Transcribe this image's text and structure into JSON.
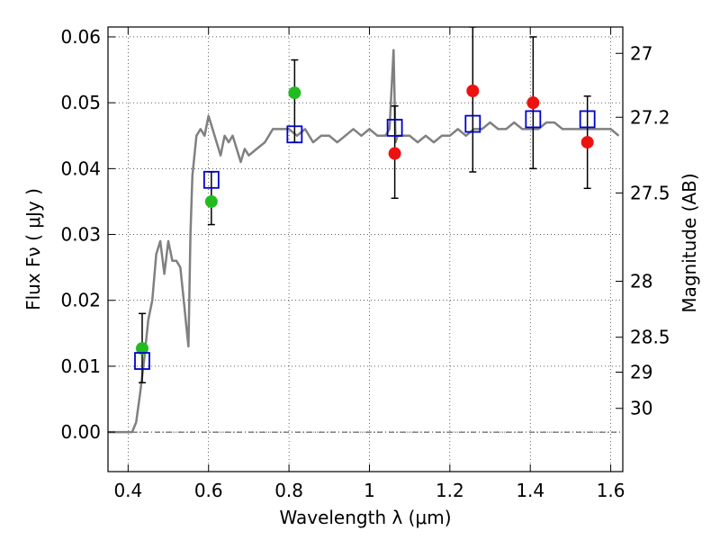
{
  "chart_data": {
    "type": "scatter",
    "title": "",
    "xlabel": "Wavelength  λ (μm)",
    "ylabel": "Flux  Fν  ( μJy )",
    "y2label": "Magnitude (AB)",
    "xlim": [
      0.35,
      1.63
    ],
    "ylim": [
      -0.006,
      0.0615
    ],
    "grid": true,
    "grid_style": "dotted",
    "x_ticks": [
      0.4,
      0.6,
      0.8,
      1.0,
      1.2,
      1.4,
      1.6
    ],
    "x_tick_labels": [
      "0.4",
      "0.6",
      "0.8",
      "1",
      "1.2",
      "1.4",
      "1.6"
    ],
    "y_ticks": [
      0.0,
      0.01,
      0.02,
      0.03,
      0.04,
      0.05,
      0.06
    ],
    "y_tick_labels": [
      "0.00",
      "0.01",
      "0.02",
      "0.03",
      "0.04",
      "0.05",
      "0.06"
    ],
    "y2_ticks": [
      {
        "label": "27",
        "flux": 0.0575
      },
      {
        "label": "27.2",
        "flux": 0.0478
      },
      {
        "label": "27.5",
        "flux": 0.0363
      },
      {
        "label": "28",
        "flux": 0.0229
      },
      {
        "label": "28.5",
        "flux": 0.0144
      },
      {
        "label": "29",
        "flux": 0.0091
      },
      {
        "label": "30",
        "flux": 0.0036
      }
    ],
    "colors": {
      "model": "#808080",
      "green_points": "#22bb22",
      "red_points": "#ee1111",
      "model_squares": "#0000cc",
      "error_bars": "#000000",
      "axes": "#000000"
    },
    "series": [
      {
        "kind": "line",
        "color_key": "model",
        "x": [
          0.35,
          0.41,
          0.42,
          0.43,
          0.44,
          0.45,
          0.46,
          0.47,
          0.48,
          0.49,
          0.5,
          0.51,
          0.52,
          0.53,
          0.54,
          0.545,
          0.55,
          0.555,
          0.56,
          0.57,
          0.58,
          0.59,
          0.6,
          0.61,
          0.62,
          0.63,
          0.64,
          0.65,
          0.66,
          0.67,
          0.68,
          0.69,
          0.7,
          0.72,
          0.74,
          0.76,
          0.78,
          0.8,
          0.82,
          0.84,
          0.86,
          0.88,
          0.9,
          0.92,
          0.94,
          0.96,
          0.98,
          1.0,
          1.02,
          1.04,
          1.05,
          1.06,
          1.065,
          1.07,
          1.08,
          1.1,
          1.12,
          1.14,
          1.16,
          1.18,
          1.2,
          1.22,
          1.24,
          1.26,
          1.28,
          1.3,
          1.32,
          1.34,
          1.36,
          1.38,
          1.4,
          1.42,
          1.44,
          1.46,
          1.48,
          1.5,
          1.52,
          1.54,
          1.56,
          1.58,
          1.6,
          1.62
        ],
        "y": [
          0.0,
          0.0,
          0.0015,
          0.006,
          0.011,
          0.017,
          0.02,
          0.027,
          0.029,
          0.024,
          0.029,
          0.026,
          0.026,
          0.025,
          0.019,
          0.016,
          0.013,
          0.03,
          0.039,
          0.045,
          0.046,
          0.045,
          0.048,
          0.046,
          0.044,
          0.042,
          0.045,
          0.044,
          0.045,
          0.043,
          0.041,
          0.043,
          0.042,
          0.043,
          0.044,
          0.046,
          0.046,
          0.046,
          0.045,
          0.046,
          0.044,
          0.045,
          0.045,
          0.044,
          0.045,
          0.046,
          0.045,
          0.046,
          0.045,
          0.045,
          0.046,
          0.058,
          0.044,
          0.045,
          0.045,
          0.045,
          0.044,
          0.045,
          0.044,
          0.045,
          0.045,
          0.046,
          0.045,
          0.046,
          0.046,
          0.047,
          0.046,
          0.046,
          0.047,
          0.046,
          0.046,
          0.046,
          0.047,
          0.047,
          0.046,
          0.046,
          0.046,
          0.046,
          0.046,
          0.046,
          0.046,
          0.045
        ]
      },
      {
        "kind": "errorbar",
        "x": [
          0.435,
          0.607,
          0.814,
          1.063,
          1.257,
          1.407,
          1.542
        ],
        "y_low": [
          0.0075,
          0.0315,
          0.044,
          0.0355,
          0.0395,
          0.04,
          0.037
        ],
        "y_high": [
          0.018,
          0.0395,
          0.0565,
          0.0495,
          0.0615,
          0.06,
          0.051
        ]
      },
      {
        "kind": "points",
        "color_key": "green_points",
        "x": [
          0.435,
          0.607,
          0.814
        ],
        "y": [
          0.0127,
          0.035,
          0.0515
        ]
      },
      {
        "kind": "points",
        "color_key": "red_points",
        "x": [
          1.063,
          1.257,
          1.407,
          1.542
        ],
        "y": [
          0.0423,
          0.0518,
          0.05,
          0.044
        ]
      },
      {
        "kind": "squares",
        "color_key": "model_squares",
        "x": [
          0.435,
          0.607,
          0.814,
          1.063,
          1.257,
          1.407,
          1.542
        ],
        "y": [
          0.0108,
          0.0383,
          0.0452,
          0.0462,
          0.0468,
          0.0475,
          0.0475
        ]
      }
    ]
  }
}
